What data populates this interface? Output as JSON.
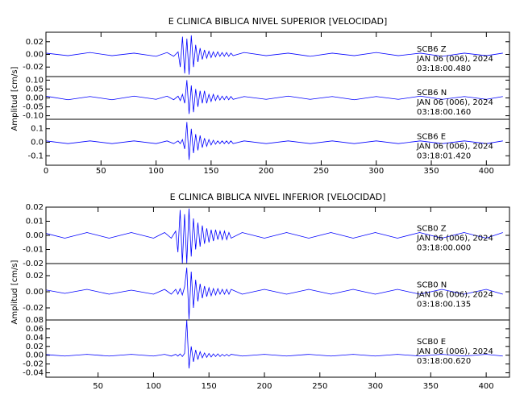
{
  "chart_data": [
    {
      "type": "line",
      "title": "E CLINICA BIBLICA NIVEL SUPERIOR [VELOCIDAD]",
      "ylabel": "Amplitud [cm/s]",
      "xlim": [
        0,
        421
      ],
      "xticks": [
        0,
        50,
        100,
        150,
        200,
        250,
        300,
        350,
        400
      ],
      "x": [
        0,
        20,
        40,
        60,
        80,
        100,
        110,
        116,
        120,
        122,
        124,
        126,
        128,
        130,
        132,
        134,
        136,
        138,
        140,
        142,
        144,
        146,
        148,
        150,
        152,
        154,
        156,
        158,
        160,
        162,
        164,
        166,
        168,
        170,
        180,
        200,
        220,
        240,
        260,
        280,
        300,
        320,
        340,
        360,
        380,
        400,
        415
      ],
      "subplots": [
        {
          "station": "SCB6   Z",
          "date": "JAN 06 (006), 2024",
          "time": "03:18:00.480",
          "color": "#0000ff",
          "ylim": [
            -0.035,
            0.035
          ],
          "yticks": [
            0.02,
            {
              "value": 0,
              "label": "0.00"
            },
            -0.02
          ],
          "values": [
            0.002,
            -0.002,
            0.003,
            -0.002,
            0.002,
            -0.003,
            0.003,
            -0.003,
            0.004,
            -0.02,
            0.028,
            -0.03,
            0.025,
            -0.032,
            0.03,
            -0.02,
            0.015,
            -0.012,
            0.01,
            -0.008,
            0.007,
            -0.006,
            0.005,
            -0.005,
            0.004,
            -0.004,
            0.004,
            -0.003,
            0.003,
            -0.003,
            0.003,
            -0.003,
            0.002,
            -0.002,
            0.003,
            -0.002,
            0.002,
            -0.003,
            0.002,
            -0.002,
            0.003,
            -0.002,
            0.002,
            -0.003,
            0.002,
            -0.002,
            0.002
          ]
        },
        {
          "station": "SCB6   N",
          "date": "JAN 06 (006), 2024",
          "time": "03:18:00.160",
          "color": "#0000ff",
          "ylim": [
            -0.12,
            0.12
          ],
          "yticks": [
            {
              "value": 0.1,
              "label": "0.10"
            },
            0.05,
            {
              "value": 0,
              "label": "0.00"
            },
            -0.05,
            {
              "value": -0.1,
              "label": "-0.10"
            }
          ],
          "values": [
            0.01,
            -0.01,
            0.008,
            -0.01,
            0.01,
            -0.008,
            0.01,
            -0.01,
            0.01,
            -0.015,
            0.02,
            -0.03,
            0.1,
            -0.09,
            0.07,
            -0.08,
            0.05,
            -0.05,
            0.04,
            -0.03,
            0.04,
            -0.03,
            0.02,
            -0.02,
            0.02,
            -0.015,
            0.015,
            -0.012,
            0.01,
            -0.01,
            0.01,
            -0.01,
            0.008,
            -0.008,
            0.008,
            -0.008,
            0.01,
            -0.008,
            0.008,
            -0.01,
            0.008,
            -0.008,
            0.01,
            -0.008,
            0.008,
            -0.008,
            0.008
          ]
        },
        {
          "station": "SCB6   E",
          "date": "JAN 06 (006), 2024",
          "time": "03:18:01.420",
          "color": "#0000ff",
          "ylim": [
            -0.17,
            0.17
          ],
          "yticks": [
            0.1,
            {
              "value": 0,
              "label": "0.0"
            },
            -0.1
          ],
          "values": [
            0.01,
            -0.01,
            0.01,
            -0.01,
            0.01,
            -0.01,
            0.01,
            -0.01,
            0.01,
            -0.01,
            0.02,
            -0.05,
            0.15,
            -0.13,
            0.1,
            -0.08,
            0.06,
            -0.06,
            0.05,
            -0.04,
            0.03,
            -0.03,
            0.02,
            -0.02,
            0.015,
            -0.015,
            0.01,
            -0.01,
            0.01,
            -0.01,
            0.01,
            -0.01,
            0.01,
            -0.01,
            0.01,
            -0.01,
            0.01,
            -0.01,
            0.01,
            -0.01,
            0.01,
            -0.01,
            0.01,
            -0.01,
            0.01,
            -0.01,
            0.01
          ]
        }
      ]
    },
    {
      "type": "line",
      "title": "E CLINICA BIBLICA NIVEL INFERIOR [VELOCIDAD]",
      "ylabel": "Amplitud [cm/s]",
      "xlim": [
        3,
        421
      ],
      "xticks": [
        50,
        100,
        150,
        200,
        250,
        300,
        350,
        400
      ],
      "x": [
        0,
        20,
        40,
        60,
        80,
        100,
        110,
        116,
        120,
        122,
        124,
        126,
        128,
        130,
        132,
        134,
        136,
        138,
        140,
        142,
        144,
        146,
        148,
        150,
        152,
        154,
        156,
        158,
        160,
        162,
        164,
        166,
        168,
        170,
        180,
        200,
        220,
        240,
        260,
        280,
        300,
        320,
        340,
        360,
        380,
        400,
        415
      ],
      "subplots": [
        {
          "station": "SCB0   Z",
          "date": "JAN 06 (006), 2024",
          "time": "03:18:00.000",
          "color": "#0000ff",
          "ylim": [
            -0.02,
            0.02
          ],
          "yticks": [
            0.02,
            0.01,
            {
              "value": 0,
              "label": "0.00"
            },
            -0.01,
            -0.02
          ],
          "values": [
            0.002,
            -0.002,
            0.002,
            -0.002,
            0.002,
            -0.002,
            0.002,
            -0.002,
            0.003,
            -0.012,
            0.018,
            -0.02,
            0.015,
            -0.02,
            0.019,
            -0.015,
            0.012,
            -0.01,
            0.009,
            -0.008,
            0.007,
            -0.006,
            0.005,
            -0.005,
            0.004,
            -0.004,
            0.004,
            -0.003,
            0.003,
            -0.003,
            0.003,
            -0.003,
            0.002,
            -0.002,
            0.002,
            -0.002,
            0.002,
            -0.002,
            0.002,
            -0.002,
            0.002,
            -0.002,
            0.002,
            -0.002,
            0.002,
            -0.002,
            0.002
          ]
        },
        {
          "station": "SCB0   N",
          "date": "JAN 06 (006), 2024",
          "time": "03:18:00.135",
          "color": "#0000ff",
          "ylim": [
            -0.035,
            0.035
          ],
          "yticks": [
            0.02,
            {
              "value": 0,
              "label": "0.00"
            },
            -0.02
          ],
          "values": [
            0.003,
            -0.002,
            0.003,
            -0.003,
            0.002,
            -0.003,
            0.003,
            -0.003,
            0.003,
            -0.003,
            0.004,
            -0.004,
            0.006,
            0.03,
            -0.034,
            0.025,
            -0.02,
            0.015,
            -0.012,
            0.01,
            -0.008,
            0.007,
            -0.006,
            0.005,
            -0.005,
            0.004,
            -0.004,
            0.004,
            -0.003,
            0.003,
            -0.003,
            0.003,
            -0.003,
            0.003,
            -0.003,
            0.003,
            -0.003,
            0.003,
            -0.003,
            0.003,
            -0.003,
            0.003,
            -0.003,
            0.003,
            -0.003,
            0.003,
            -0.003
          ]
        },
        {
          "station": "SCB0   E",
          "date": "JAN 06 (006), 2024",
          "time": "03:18:00.620",
          "color": "#0000ff",
          "ylim": [
            -0.05,
            0.08
          ],
          "yticks": [
            0.08,
            0.06,
            0.04,
            0.02,
            {
              "value": 0,
              "label": "0.00"
            },
            -0.02,
            -0.04
          ],
          "values": [
            0.002,
            -0.002,
            0.002,
            -0.002,
            0.002,
            -0.002,
            0.002,
            -0.002,
            0.002,
            -0.002,
            0.003,
            -0.003,
            0.004,
            0.08,
            -0.03,
            0.02,
            -0.015,
            0.012,
            -0.01,
            0.008,
            -0.006,
            0.005,
            -0.005,
            0.004,
            -0.004,
            0.003,
            -0.003,
            0.003,
            -0.003,
            0.002,
            -0.002,
            0.002,
            -0.002,
            0.002,
            -0.002,
            0.002,
            -0.002,
            0.002,
            -0.002,
            0.002,
            -0.002,
            0.002,
            -0.002,
            0.002,
            -0.002,
            0.002,
            -0.002
          ]
        }
      ]
    }
  ]
}
